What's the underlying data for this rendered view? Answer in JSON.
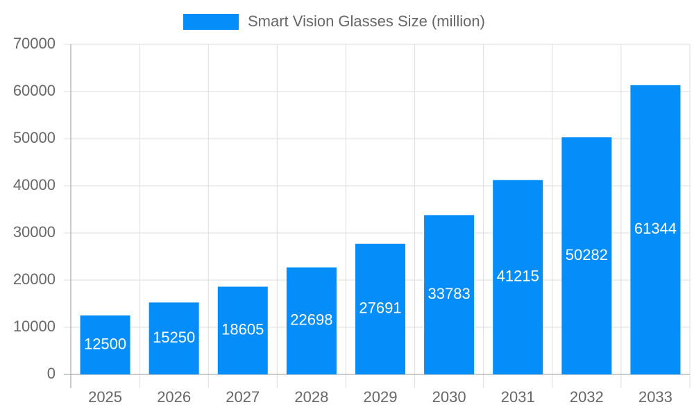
{
  "chart_data": {
    "type": "bar",
    "categories": [
      "2025",
      "2026",
      "2027",
      "2028",
      "2029",
      "2030",
      "2031",
      "2032",
      "2033"
    ],
    "series": [
      {
        "name": "Smart Vision Glasses Size (million)",
        "color": "#058dfa",
        "values": [
          12500,
          15250,
          18605,
          22698,
          27691,
          33783,
          41215,
          50282,
          61344
        ]
      }
    ],
    "ylim": [
      0,
      70000
    ],
    "yticks": [
      0,
      10000,
      20000,
      30000,
      40000,
      50000,
      60000,
      70000
    ],
    "grid": true,
    "legend": "top"
  }
}
